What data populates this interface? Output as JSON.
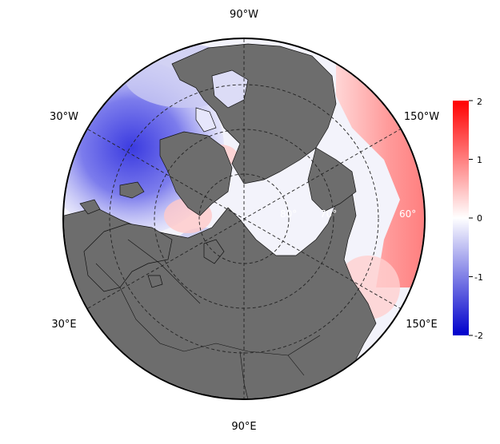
{
  "map": {
    "lon_labels": {
      "top": "90°W",
      "upper_left": "30°W",
      "upper_right": "150°W",
      "lower_left": "30°E",
      "lower_right": "150°E",
      "bottom": "90°E"
    },
    "lat_labels": [
      "80°",
      "70°",
      "60°"
    ],
    "colors": {
      "land": "#6d6d6d",
      "background_white": "#ffffff",
      "grid": "#222222",
      "outline": "#000000",
      "anomaly_positive": "#ff0000",
      "anomaly_negative": "#0000cc"
    }
  },
  "colorbar": {
    "ticks": [
      "2",
      "1",
      "0",
      "-1",
      "-2"
    ],
    "range": [
      -2,
      2
    ],
    "colors": {
      "max": "#ff0000",
      "mid": "#ffffff",
      "min": "#0000cc"
    }
  }
}
